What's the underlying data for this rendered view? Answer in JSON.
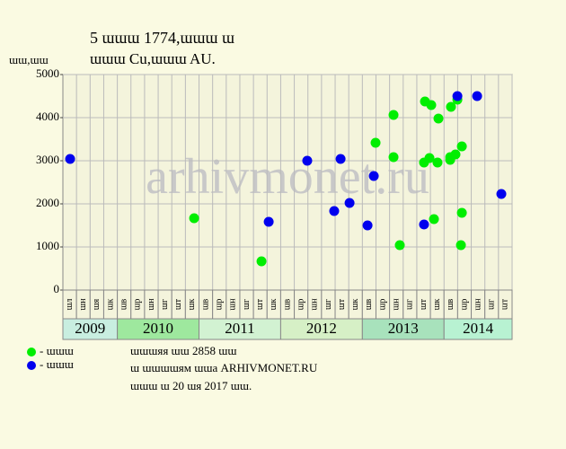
{
  "chart_data": {
    "type": "scatter",
    "title": "5 ɯɯɯ 1774,ɯɯɯ ɯ",
    "subtitle": "ɯɯɯ Cu,ɯɯɯ AU.",
    "y_label": "ɯɯ,ɯɯ",
    "watermark": "arhivmonet.ru",
    "x_groups": [
      {
        "label": "2009",
        "color": "#c8eee0",
        "months": [
          "ɯл",
          "ɯн",
          "ɯя",
          "ɯк"
        ]
      },
      {
        "label": "2010",
        "color": "#9ee89e",
        "months": [
          "ɯв",
          "ɯр",
          "ɯн",
          "ɯг",
          "ɯт",
          "ɯк"
        ]
      },
      {
        "label": "2011",
        "color": "#d2f2d2",
        "months": [
          "ɯв",
          "ɯр",
          "ɯн",
          "ɯг",
          "ɯт",
          "ɯк"
        ]
      },
      {
        "label": "2012",
        "color": "#d6f0c6",
        "months": [
          "ɯв",
          "ɯр",
          "ɯн",
          "ɯг",
          "ɯт",
          "ɯк"
        ]
      },
      {
        "label": "2013",
        "color": "#a8e2bc",
        "months": [
          "ɯв",
          "ɯр",
          "ɯн",
          "ɯг",
          "ɯт",
          "ɯк"
        ]
      },
      {
        "label": "2014",
        "color": "#b8f2d2",
        "months": [
          "ɯв",
          "ɯр",
          "ɯн",
          "ɯг",
          "ɯт"
        ]
      }
    ],
    "xlim": [
      0,
      33
    ],
    "ylim": [
      0,
      5000
    ],
    "yticks": [
      0,
      1000,
      2000,
      3000,
      4000,
      5000
    ],
    "grid": true,
    "series": [
      {
        "name": "- ɯɯɯ",
        "color": "#00ee00",
        "x": [
          9.64,
          14.59,
          22.97,
          24.29,
          24.29,
          24.75,
          26.53,
          26.6,
          26.93,
          27.06,
          27.26,
          27.52,
          27.59,
          28.45,
          28.45,
          28.51,
          28.84,
          28.98,
          29.24,
          29.31,
          29.31
        ],
        "values": [
          1667,
          667,
          3417,
          4063,
          3083,
          1042,
          2958,
          4375,
          3063,
          4292,
          1646,
          2958,
          3979,
          3083,
          3021,
          4250,
          3146,
          4417,
          1042,
          1792,
          3333
        ]
      },
      {
        "name": "- ɯɯɯ",
        "color": "#0000ee",
        "x": [
          0.53,
          15.12,
          17.95,
          19.93,
          20.4,
          21.06,
          22.38,
          22.84,
          26.53,
          28.98,
          30.43,
          32.21
        ],
        "values": [
          3042,
          1583,
          3000,
          1833,
          3042,
          2021,
          1500,
          2646,
          1521,
          4500,
          4500,
          2229
        ]
      }
    ],
    "notes": [
      "ɯɯɯяя ɯɯ 2858 ɯɯ",
      "ɯ ɯɯɯɯям ɯɯа ARHIVMONET.RU",
      "ɯɯɯ ɯ 20 ɯя 2017 ɯɯ."
    ]
  }
}
